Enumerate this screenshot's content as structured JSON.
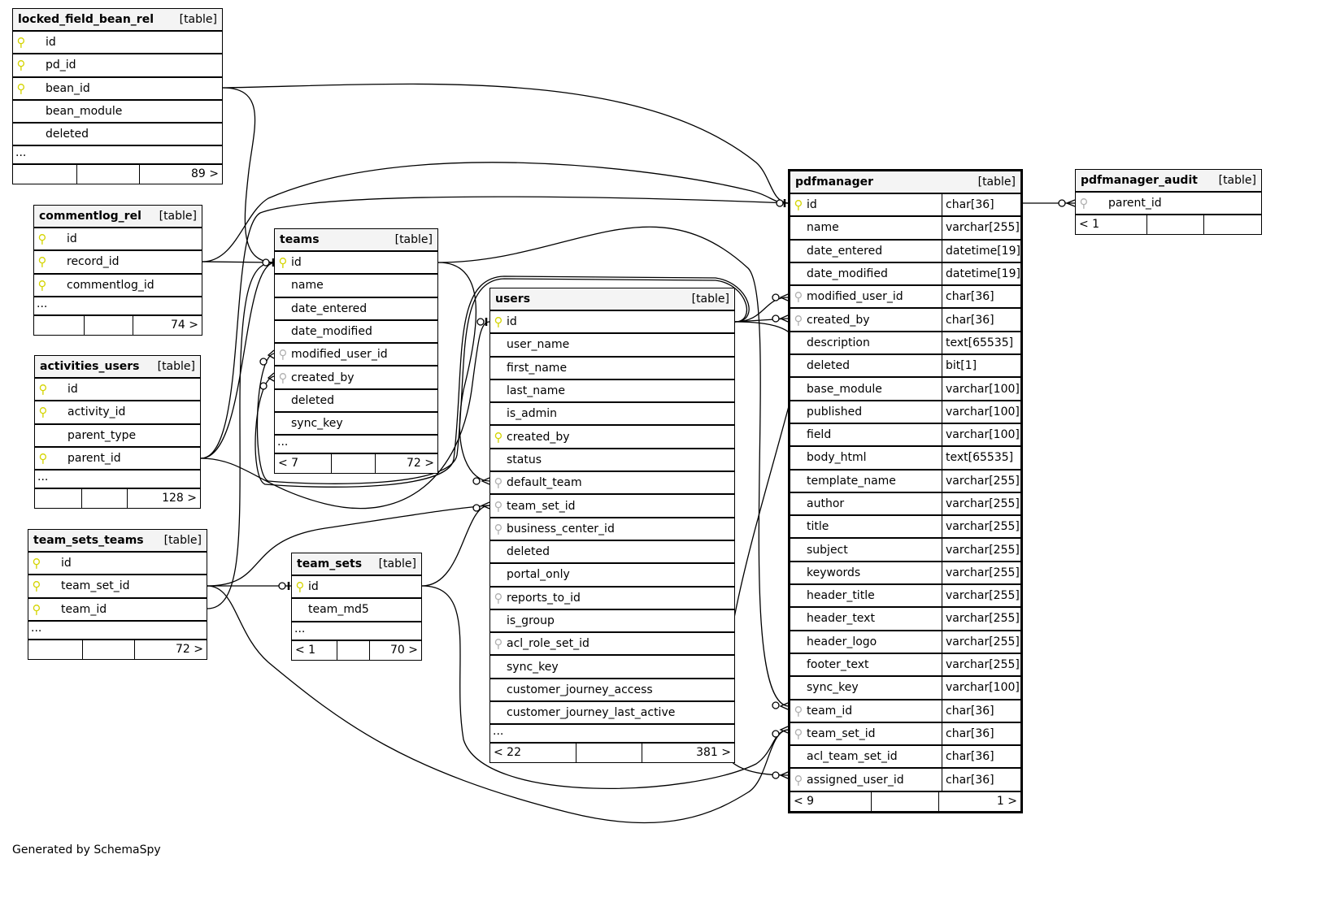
{
  "tables": [
    {
      "id": "locked_field_bean_rel",
      "name": "locked_field_bean_rel",
      "label": "[table]",
      "columns": [
        {
          "name": "id",
          "key": "pk"
        },
        {
          "name": "pd_id",
          "key": "pk"
        },
        {
          "name": "bean_id",
          "key": "pk"
        },
        {
          "name": "bean_module",
          "key": ""
        },
        {
          "name": "deleted",
          "key": ""
        }
      ],
      "more": "...",
      "footer": [
        "",
        "",
        "89 >"
      ]
    },
    {
      "id": "commentlog_rel",
      "name": "commentlog_rel",
      "label": "[table]",
      "columns": [
        {
          "name": "id",
          "key": "pk"
        },
        {
          "name": "record_id",
          "key": "pk"
        },
        {
          "name": "commentlog_id",
          "key": "pk"
        }
      ],
      "more": "...",
      "footer": [
        "",
        "",
        "74 >"
      ]
    },
    {
      "id": "activities_users",
      "name": "activities_users",
      "label": "[table]",
      "columns": [
        {
          "name": "id",
          "key": "pk"
        },
        {
          "name": "activity_id",
          "key": "pk"
        },
        {
          "name": "parent_type",
          "key": ""
        },
        {
          "name": "parent_id",
          "key": "pk"
        }
      ],
      "more": "...",
      "footer": [
        "",
        "",
        "128 >"
      ]
    },
    {
      "id": "team_sets_teams",
      "name": "team_sets_teams",
      "label": "[table]",
      "columns": [
        {
          "name": "id",
          "key": "pk"
        },
        {
          "name": "team_set_id",
          "key": "pk"
        },
        {
          "name": "team_id",
          "key": "pk"
        }
      ],
      "more": "...",
      "footer": [
        "",
        "",
        "72 >"
      ]
    },
    {
      "id": "teams",
      "name": "teams",
      "label": "[table]",
      "columns": [
        {
          "name": "id",
          "key": "pk"
        },
        {
          "name": "name",
          "key": ""
        },
        {
          "name": "date_entered",
          "key": ""
        },
        {
          "name": "date_modified",
          "key": ""
        },
        {
          "name": "modified_user_id",
          "key": "fk"
        },
        {
          "name": "created_by",
          "key": "fk"
        },
        {
          "name": "deleted",
          "key": ""
        },
        {
          "name": "sync_key",
          "key": ""
        }
      ],
      "more": "...",
      "footer": [
        "< 7",
        "",
        "72 >"
      ]
    },
    {
      "id": "team_sets",
      "name": "team_sets",
      "label": "[table]",
      "columns": [
        {
          "name": "id",
          "key": "pk"
        },
        {
          "name": "team_md5",
          "key": ""
        }
      ],
      "more": "...",
      "footer": [
        "< 1",
        "",
        "70 >"
      ]
    },
    {
      "id": "users",
      "name": "users",
      "label": "[table]",
      "columns": [
        {
          "name": "id",
          "key": "pk"
        },
        {
          "name": "user_name",
          "key": ""
        },
        {
          "name": "first_name",
          "key": ""
        },
        {
          "name": "last_name",
          "key": ""
        },
        {
          "name": "is_admin",
          "key": ""
        },
        {
          "name": "created_by",
          "key": "pk"
        },
        {
          "name": "status",
          "key": ""
        },
        {
          "name": "default_team",
          "key": "fk"
        },
        {
          "name": "team_set_id",
          "key": "fk"
        },
        {
          "name": "business_center_id",
          "key": "fk"
        },
        {
          "name": "deleted",
          "key": ""
        },
        {
          "name": "portal_only",
          "key": ""
        },
        {
          "name": "reports_to_id",
          "key": "fk"
        },
        {
          "name": "is_group",
          "key": ""
        },
        {
          "name": "acl_role_set_id",
          "key": "fk"
        },
        {
          "name": "sync_key",
          "key": ""
        },
        {
          "name": "customer_journey_access",
          "key": ""
        },
        {
          "name": "customer_journey_last_active",
          "key": ""
        }
      ],
      "more": "...",
      "footer": [
        "< 22",
        "",
        "381 >"
      ]
    },
    {
      "id": "pdfmanager",
      "name": "pdfmanager",
      "label": "[table]",
      "columns": [
        {
          "name": "id",
          "key": "pk",
          "type": "char[36]"
        },
        {
          "name": "name",
          "key": "",
          "type": "varchar[255]"
        },
        {
          "name": "date_entered",
          "key": "",
          "type": "datetime[19]"
        },
        {
          "name": "date_modified",
          "key": "",
          "type": "datetime[19]"
        },
        {
          "name": "modified_user_id",
          "key": "fk",
          "type": "char[36]"
        },
        {
          "name": "created_by",
          "key": "fk",
          "type": "char[36]"
        },
        {
          "name": "description",
          "key": "",
          "type": "text[65535]"
        },
        {
          "name": "deleted",
          "key": "",
          "type": "bit[1]"
        },
        {
          "name": "base_module",
          "key": "",
          "type": "varchar[100]"
        },
        {
          "name": "published",
          "key": "",
          "type": "varchar[100]"
        },
        {
          "name": "field",
          "key": "",
          "type": "varchar[100]"
        },
        {
          "name": "body_html",
          "key": "",
          "type": "text[65535]"
        },
        {
          "name": "template_name",
          "key": "",
          "type": "varchar[255]"
        },
        {
          "name": "author",
          "key": "",
          "type": "varchar[255]"
        },
        {
          "name": "title",
          "key": "",
          "type": "varchar[255]"
        },
        {
          "name": "subject",
          "key": "",
          "type": "varchar[255]"
        },
        {
          "name": "keywords",
          "key": "",
          "type": "varchar[255]"
        },
        {
          "name": "header_title",
          "key": "",
          "type": "varchar[255]"
        },
        {
          "name": "header_text",
          "key": "",
          "type": "varchar[255]"
        },
        {
          "name": "header_logo",
          "key": "",
          "type": "varchar[255]"
        },
        {
          "name": "footer_text",
          "key": "",
          "type": "varchar[255]"
        },
        {
          "name": "sync_key",
          "key": "",
          "type": "varchar[100]"
        },
        {
          "name": "team_id",
          "key": "fk",
          "type": "char[36]"
        },
        {
          "name": "team_set_id",
          "key": "fk",
          "type": "char[36]"
        },
        {
          "name": "acl_team_set_id",
          "key": "",
          "type": "char[36]"
        },
        {
          "name": "assigned_user_id",
          "key": "fk",
          "type": "char[36]"
        }
      ],
      "footer": [
        "< 9",
        "",
        "1 >"
      ]
    },
    {
      "id": "pdfmanager_audit",
      "name": "pdfmanager_audit",
      "label": "[table]",
      "columns": [
        {
          "name": "parent_id",
          "key": "fk"
        }
      ],
      "footer": [
        "< 1",
        "",
        ""
      ]
    }
  ],
  "colors": {
    "primary_key": "#d4d400",
    "foreign_key": "#b0b0b0",
    "header_bg": "#f4f4f4",
    "line": "#000000"
  },
  "icons": {
    "pk": "yellow-key-icon",
    "fk": "grey-key-icon"
  },
  "footer_text": "Generated by SchemaSpy"
}
